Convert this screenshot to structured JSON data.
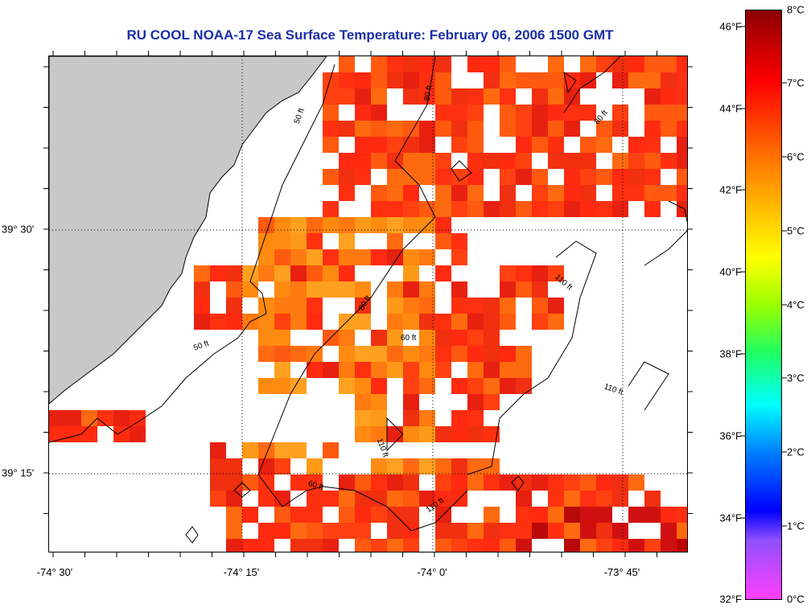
{
  "title": "RU COOL  NOAA-17  Sea Surface Temperature:  February 06, 2006 1500 GMT",
  "axes": {
    "x_labels": [
      "-74° 30'",
      "-74° 15'",
      "-74° 0'",
      "-73° 45'"
    ],
    "y_labels": [
      "39° 30'",
      "39° 15'"
    ]
  },
  "contours": {
    "labels": [
      "50 ft",
      "60 ft",
      "80 ft",
      "110 ft"
    ]
  },
  "colorbar": {
    "fahrenheit": [
      "46°F",
      "44°F",
      "42°F",
      "40°F",
      "38°F",
      "36°F",
      "34°F",
      "32°F"
    ],
    "celsius": [
      "8°C",
      "7°C",
      "6°C",
      "5°C",
      "4°C",
      "3°C",
      "2°C",
      "1°C",
      "0°C"
    ],
    "min_c": 0,
    "max_c": 8
  },
  "colors": {
    "land": "#c8c8c8",
    "title": "#1a2ea8",
    "warm": "#ff2a10",
    "mid": "#ff8a10"
  }
}
